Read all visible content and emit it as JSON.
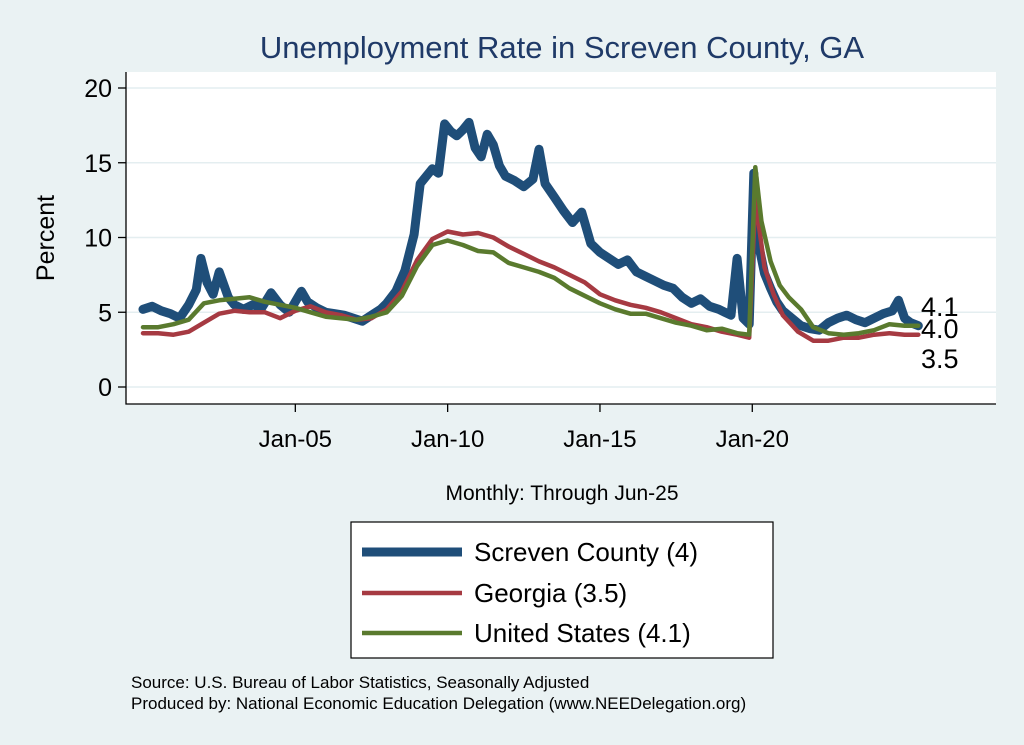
{
  "chart_data": {
    "type": "line",
    "title": "Unemployment Rate in Screven  County, GA",
    "xlabel": "Monthly: Through Jun-25",
    "ylabel": "Percent",
    "ylim": [
      0,
      20
    ],
    "xlim": [
      2000.0,
      2028.0
    ],
    "yticks": [
      0,
      5,
      10,
      15,
      20
    ],
    "xticks": [
      {
        "value": 2005.0,
        "label": "Jan-05"
      },
      {
        "value": 2010.0,
        "label": "Jan-10"
      },
      {
        "value": 2015.0,
        "label": "Jan-15"
      },
      {
        "value": 2020.0,
        "label": "Jan-20"
      }
    ],
    "grid": true,
    "legend_position": "bottom-center",
    "end_labels": [
      "4.1",
      "4.0",
      "3.5"
    ],
    "series": [
      {
        "name": "Screven  County (4)",
        "color": "#1f4e79",
        "width": 9,
        "points": [
          [
            2000.0,
            5.2
          ],
          [
            2000.3,
            5.4
          ],
          [
            2000.6,
            5.1
          ],
          [
            2000.9,
            4.9
          ],
          [
            2001.2,
            4.6
          ],
          [
            2001.5,
            5.5
          ],
          [
            2001.75,
            6.5
          ],
          [
            2001.9,
            8.6
          ],
          [
            2002.1,
            7.0
          ],
          [
            2002.3,
            6.2
          ],
          [
            2002.5,
            7.7
          ],
          [
            2002.8,
            6.0
          ],
          [
            2003.0,
            5.5
          ],
          [
            2003.3,
            5.2
          ],
          [
            2003.6,
            5.5
          ],
          [
            2003.9,
            5.3
          ],
          [
            2004.2,
            6.3
          ],
          [
            2004.5,
            5.5
          ],
          [
            2004.8,
            5.0
          ],
          [
            2005.0,
            5.7
          ],
          [
            2005.2,
            6.4
          ],
          [
            2005.4,
            5.7
          ],
          [
            2005.7,
            5.3
          ],
          [
            2006.0,
            5.0
          ],
          [
            2006.3,
            4.9
          ],
          [
            2006.6,
            4.8
          ],
          [
            2006.9,
            4.6
          ],
          [
            2007.2,
            4.4
          ],
          [
            2007.5,
            4.8
          ],
          [
            2007.8,
            5.2
          ],
          [
            2008.0,
            5.6
          ],
          [
            2008.3,
            6.4
          ],
          [
            2008.6,
            7.8
          ],
          [
            2008.9,
            10.2
          ],
          [
            2009.1,
            13.6
          ],
          [
            2009.3,
            14.1
          ],
          [
            2009.5,
            14.6
          ],
          [
            2009.7,
            14.3
          ],
          [
            2009.9,
            17.6
          ],
          [
            2010.1,
            17.1
          ],
          [
            2010.3,
            16.8
          ],
          [
            2010.5,
            17.2
          ],
          [
            2010.7,
            17.7
          ],
          [
            2010.9,
            16.0
          ],
          [
            2011.1,
            15.4
          ],
          [
            2011.3,
            16.9
          ],
          [
            2011.5,
            16.2
          ],
          [
            2011.7,
            14.8
          ],
          [
            2011.9,
            14.1
          ],
          [
            2012.2,
            13.8
          ],
          [
            2012.5,
            13.4
          ],
          [
            2012.8,
            13.9
          ],
          [
            2013.0,
            15.9
          ],
          [
            2013.2,
            13.6
          ],
          [
            2013.5,
            12.7
          ],
          [
            2013.8,
            11.8
          ],
          [
            2014.1,
            11.0
          ],
          [
            2014.4,
            11.7
          ],
          [
            2014.7,
            9.6
          ],
          [
            2015.0,
            9.0
          ],
          [
            2015.3,
            8.6
          ],
          [
            2015.6,
            8.2
          ],
          [
            2015.9,
            8.5
          ],
          [
            2016.2,
            7.7
          ],
          [
            2016.5,
            7.4
          ],
          [
            2016.8,
            7.1
          ],
          [
            2017.1,
            6.8
          ],
          [
            2017.4,
            6.6
          ],
          [
            2017.7,
            6.0
          ],
          [
            2018.0,
            5.6
          ],
          [
            2018.3,
            5.9
          ],
          [
            2018.6,
            5.4
          ],
          [
            2018.9,
            5.2
          ],
          [
            2019.1,
            5.0
          ],
          [
            2019.3,
            4.8
          ],
          [
            2019.5,
            8.6
          ],
          [
            2019.7,
            4.6
          ],
          [
            2019.9,
            4.2
          ],
          [
            2020.05,
            14.3
          ],
          [
            2020.2,
            9.6
          ],
          [
            2020.4,
            7.6
          ],
          [
            2020.6,
            6.6
          ],
          [
            2020.8,
            5.7
          ],
          [
            2021.0,
            5.1
          ],
          [
            2021.3,
            4.6
          ],
          [
            2021.6,
            4.1
          ],
          [
            2021.9,
            3.9
          ],
          [
            2022.2,
            3.8
          ],
          [
            2022.5,
            4.3
          ],
          [
            2022.8,
            4.6
          ],
          [
            2023.1,
            4.8
          ],
          [
            2023.4,
            4.5
          ],
          [
            2023.7,
            4.3
          ],
          [
            2024.0,
            4.6
          ],
          [
            2024.3,
            4.9
          ],
          [
            2024.6,
            5.1
          ],
          [
            2024.8,
            5.8
          ],
          [
            2025.0,
            4.6
          ],
          [
            2025.2,
            4.3
          ],
          [
            2025.45,
            4.1
          ]
        ]
      },
      {
        "name": "Georgia (3.5)",
        "color": "#a63a42",
        "width": 4.5,
        "points": [
          [
            2000.0,
            3.6
          ],
          [
            2000.5,
            3.6
          ],
          [
            2001.0,
            3.5
          ],
          [
            2001.5,
            3.7
          ],
          [
            2002.0,
            4.3
          ],
          [
            2002.5,
            4.9
          ],
          [
            2003.0,
            5.1
          ],
          [
            2003.5,
            5.0
          ],
          [
            2004.0,
            5.0
          ],
          [
            2004.5,
            4.6
          ],
          [
            2005.0,
            5.1
          ],
          [
            2005.5,
            5.4
          ],
          [
            2006.0,
            5.0
          ],
          [
            2006.5,
            4.8
          ],
          [
            2007.0,
            4.5
          ],
          [
            2007.5,
            4.6
          ],
          [
            2008.0,
            5.2
          ],
          [
            2008.5,
            6.4
          ],
          [
            2009.0,
            8.5
          ],
          [
            2009.5,
            9.9
          ],
          [
            2010.0,
            10.4
          ],
          [
            2010.5,
            10.2
          ],
          [
            2011.0,
            10.3
          ],
          [
            2011.5,
            10.0
          ],
          [
            2012.0,
            9.4
          ],
          [
            2012.5,
            8.9
          ],
          [
            2013.0,
            8.4
          ],
          [
            2013.5,
            8.0
          ],
          [
            2014.0,
            7.5
          ],
          [
            2014.5,
            7.0
          ],
          [
            2015.0,
            6.2
          ],
          [
            2015.5,
            5.8
          ],
          [
            2016.0,
            5.5
          ],
          [
            2016.5,
            5.3
          ],
          [
            2017.0,
            5.0
          ],
          [
            2017.5,
            4.6
          ],
          [
            2018.0,
            4.2
          ],
          [
            2018.5,
            4.0
          ],
          [
            2019.0,
            3.7
          ],
          [
            2019.5,
            3.5
          ],
          [
            2019.9,
            3.3
          ],
          [
            2020.1,
            12.6
          ],
          [
            2020.4,
            8.0
          ],
          [
            2020.7,
            6.2
          ],
          [
            2021.0,
            4.8
          ],
          [
            2021.5,
            3.7
          ],
          [
            2022.0,
            3.1
          ],
          [
            2022.5,
            3.1
          ],
          [
            2023.0,
            3.3
          ],
          [
            2023.5,
            3.3
          ],
          [
            2024.0,
            3.5
          ],
          [
            2024.5,
            3.6
          ],
          [
            2025.0,
            3.5
          ],
          [
            2025.45,
            3.5
          ]
        ]
      },
      {
        "name": "United States (4.1)",
        "color": "#5a7a2e",
        "width": 4.5,
        "points": [
          [
            2000.0,
            4.0
          ],
          [
            2000.5,
            4.0
          ],
          [
            2001.0,
            4.2
          ],
          [
            2001.5,
            4.5
          ],
          [
            2002.0,
            5.6
          ],
          [
            2002.5,
            5.8
          ],
          [
            2003.0,
            5.9
          ],
          [
            2003.5,
            6.0
          ],
          [
            2004.0,
            5.7
          ],
          [
            2004.5,
            5.5
          ],
          [
            2005.0,
            5.3
          ],
          [
            2005.5,
            5.0
          ],
          [
            2006.0,
            4.7
          ],
          [
            2006.5,
            4.6
          ],
          [
            2007.0,
            4.5
          ],
          [
            2007.5,
            4.7
          ],
          [
            2008.0,
            5.0
          ],
          [
            2008.5,
            6.1
          ],
          [
            2009.0,
            8.1
          ],
          [
            2009.5,
            9.5
          ],
          [
            2010.0,
            9.8
          ],
          [
            2010.5,
            9.5
          ],
          [
            2011.0,
            9.1
          ],
          [
            2011.5,
            9.0
          ],
          [
            2012.0,
            8.3
          ],
          [
            2012.5,
            8.0
          ],
          [
            2013.0,
            7.7
          ],
          [
            2013.5,
            7.3
          ],
          [
            2014.0,
            6.6
          ],
          [
            2014.5,
            6.1
          ],
          [
            2015.0,
            5.6
          ],
          [
            2015.5,
            5.2
          ],
          [
            2016.0,
            4.9
          ],
          [
            2016.5,
            4.9
          ],
          [
            2017.0,
            4.6
          ],
          [
            2017.5,
            4.3
          ],
          [
            2018.0,
            4.1
          ],
          [
            2018.5,
            3.8
          ],
          [
            2019.0,
            3.9
          ],
          [
            2019.5,
            3.6
          ],
          [
            2019.9,
            3.5
          ],
          [
            2020.1,
            14.7
          ],
          [
            2020.3,
            11.1
          ],
          [
            2020.6,
            8.4
          ],
          [
            2020.9,
            6.8
          ],
          [
            2021.2,
            6.0
          ],
          [
            2021.6,
            5.2
          ],
          [
            2022.0,
            4.0
          ],
          [
            2022.5,
            3.6
          ],
          [
            2023.0,
            3.5
          ],
          [
            2023.5,
            3.6
          ],
          [
            2024.0,
            3.8
          ],
          [
            2024.5,
            4.2
          ],
          [
            2025.0,
            4.1
          ],
          [
            2025.45,
            4.1
          ]
        ]
      }
    ]
  },
  "source_line1": "Source: U.S. Bureau of Labor Statistics, Seasonally Adjusted",
  "source_line2": "Produced by: National Economic Education Delegation (www.NEEDelegation.org)"
}
